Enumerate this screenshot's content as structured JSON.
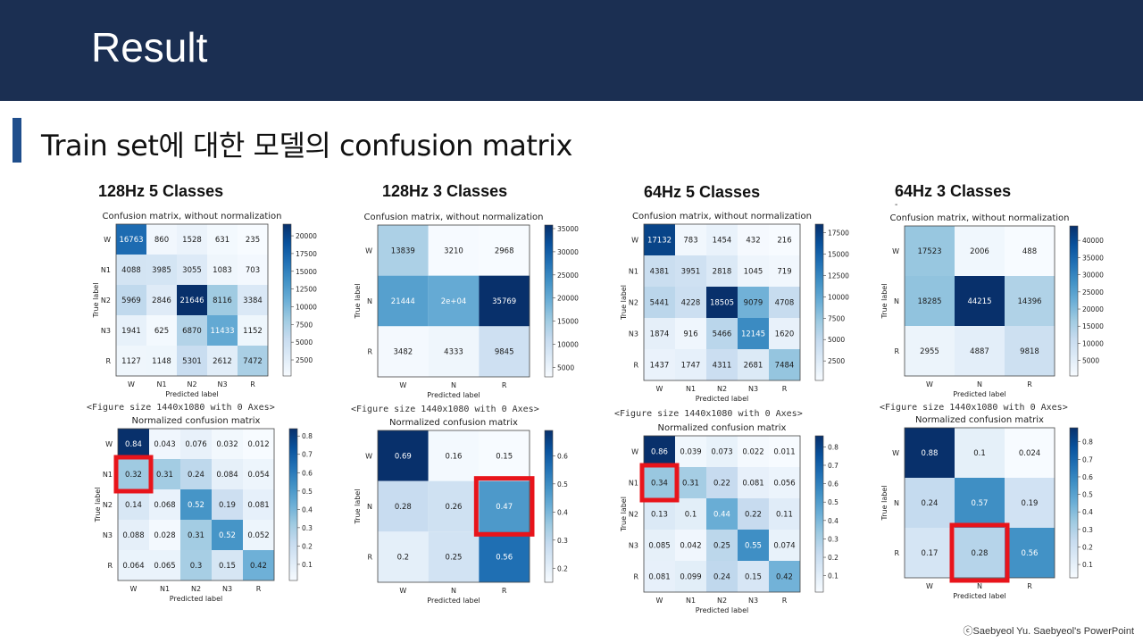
{
  "slide": {
    "title": "Result",
    "subtitle": "Train set에 대한 모델의 confusion matrix",
    "footer": "ⓒSaebyeol Yu. Saebyeol's PowerPoint",
    "stray_mark": "-"
  },
  "columns": [
    {
      "label": "128Hz 5 Classes"
    },
    {
      "label": "128Hz 3 Classes"
    },
    {
      "label": "64Hz 5 Classes"
    },
    {
      "label": "64Hz 3 Classes"
    }
  ],
  "chart_data": [
    {
      "type": "heatmap",
      "title": "Confusion matrix, without normalization",
      "xlabel": "Predicted label",
      "ylabel": "True label",
      "x_categories": [
        "W",
        "N1",
        "N2",
        "N3",
        "R"
      ],
      "y_categories": [
        "W",
        "N1",
        "N2",
        "N3",
        "R"
      ],
      "cells": [
        [
          "16763",
          "860",
          "1528",
          "631",
          "235"
        ],
        [
          "4088",
          "3985",
          "3055",
          "1083",
          "703"
        ],
        [
          "5969",
          "2846",
          "21646",
          "8116",
          "3384"
        ],
        [
          "1941",
          "625",
          "6870",
          "11433",
          "1152"
        ],
        [
          "1127",
          "1148",
          "5301",
          "2612",
          "7472"
        ]
      ],
      "vmin": 235,
      "vmax": 21646,
      "colorbar_ticks": [
        "2500",
        "5000",
        "7500",
        "10000",
        "12500",
        "15000",
        "17500",
        "20000"
      ],
      "colormap": "Blues",
      "caption": "<Figure size 1440x1080 with 0 Axes>"
    },
    {
      "type": "heatmap",
      "title": "Normalized confusion matrix",
      "xlabel": "Predicted label",
      "ylabel": "True label",
      "x_categories": [
        "W",
        "N1",
        "N2",
        "N3",
        "R"
      ],
      "y_categories": [
        "W",
        "N1",
        "N2",
        "N3",
        "R"
      ],
      "cells": [
        [
          "0.84",
          "0.043",
          "0.076",
          "0.032",
          "0.012"
        ],
        [
          "0.32",
          "0.31",
          "0.24",
          "0.084",
          "0.054"
        ],
        [
          "0.14",
          "0.068",
          "0.52",
          "0.19",
          "0.081"
        ],
        [
          "0.088",
          "0.028",
          "0.31",
          "0.52",
          "0.052"
        ],
        [
          "0.064",
          "0.065",
          "0.3",
          "0.15",
          "0.42"
        ]
      ],
      "vmin": 0.012,
      "vmax": 0.84,
      "colorbar_ticks": [
        "0.1",
        "0.2",
        "0.3",
        "0.4",
        "0.5",
        "0.6",
        "0.7",
        "0.8"
      ],
      "colormap": "Blues",
      "highlight": {
        "row": 1,
        "col": 0,
        "color": "#e8141b"
      }
    },
    {
      "type": "heatmap",
      "title": "Confusion matrix, without normalization",
      "xlabel": "Predicted label",
      "ylabel": "True label",
      "x_categories": [
        "W",
        "N",
        "R"
      ],
      "y_categories": [
        "W",
        "N",
        "R"
      ],
      "cells": [
        [
          "13839",
          "3210",
          "2968"
        ],
        [
          "21444",
          "2e+04",
          "35769"
        ],
        [
          "3482",
          "4333",
          "9845"
        ]
      ],
      "vmin": 2968,
      "vmax": 35769,
      "colorbar_ticks": [
        "5000",
        "10000",
        "15000",
        "20000",
        "25000",
        "30000",
        "35000"
      ],
      "colormap": "Blues",
      "caption": "<Figure size 1440x1080 with 0 Axes>"
    },
    {
      "type": "heatmap",
      "title": "Normalized confusion matrix",
      "xlabel": "Predicted label",
      "ylabel": "True label",
      "x_categories": [
        "W",
        "N",
        "R"
      ],
      "y_categories": [
        "W",
        "N",
        "R"
      ],
      "cells": [
        [
          "0.69",
          "0.16",
          "0.15"
        ],
        [
          "0.28",
          "0.26",
          "0.47"
        ],
        [
          "0.2",
          "0.25",
          "0.56"
        ]
      ],
      "vmin": 0.15,
      "vmax": 0.69,
      "colorbar_ticks": [
        "0.2",
        "0.3",
        "0.4",
        "0.5",
        "0.6"
      ],
      "colormap": "Blues",
      "highlight": {
        "row": 1,
        "col": 2,
        "color": "#e8141b"
      }
    },
    {
      "type": "heatmap",
      "title": "Confusion matrix, without normalization",
      "xlabel": "Predicted label",
      "ylabel": "True label",
      "x_categories": [
        "W",
        "N1",
        "N2",
        "N3",
        "R"
      ],
      "y_categories": [
        "W",
        "N1",
        "N2",
        "N3",
        "R"
      ],
      "cells": [
        [
          "17132",
          "783",
          "1454",
          "432",
          "216"
        ],
        [
          "4381",
          "3951",
          "2818",
          "1045",
          "719"
        ],
        [
          "5441",
          "4228",
          "18505",
          "9079",
          "4708"
        ],
        [
          "1874",
          "916",
          "5466",
          "12145",
          "1620"
        ],
        [
          "1437",
          "1747",
          "4311",
          "2681",
          "7484"
        ]
      ],
      "vmin": 216,
      "vmax": 18505,
      "colorbar_ticks": [
        "2500",
        "5000",
        "7500",
        "10000",
        "12500",
        "15000",
        "17500"
      ],
      "colormap": "Blues",
      "caption": "<Figure size 1440x1080 with 0 Axes>"
    },
    {
      "type": "heatmap",
      "title": "Normalized confusion matrix",
      "xlabel": "Predicted label",
      "ylabel": "True label",
      "x_categories": [
        "W",
        "N1",
        "N2",
        "N3",
        "R"
      ],
      "y_categories": [
        "W",
        "N1",
        "N2",
        "N3",
        "R"
      ],
      "cells": [
        [
          "0.86",
          "0.039",
          "0.073",
          "0.022",
          "0.011"
        ],
        [
          "0.34",
          "0.31",
          "0.22",
          "0.081",
          "0.056"
        ],
        [
          "0.13",
          "0.1",
          "0.44",
          "0.22",
          "0.11"
        ],
        [
          "0.085",
          "0.042",
          "0.25",
          "0.55",
          "0.074"
        ],
        [
          "0.081",
          "0.099",
          "0.24",
          "0.15",
          "0.42"
        ]
      ],
      "vmin": 0.011,
      "vmax": 0.86,
      "colorbar_ticks": [
        "0.1",
        "0.2",
        "0.3",
        "0.4",
        "0.5",
        "0.6",
        "0.7",
        "0.8"
      ],
      "colormap": "Blues",
      "highlight": {
        "row": 1,
        "col": 0,
        "color": "#e8141b"
      }
    },
    {
      "type": "heatmap",
      "title": "Confusion matrix, without normalization",
      "xlabel": "Predicted label",
      "ylabel": "True label",
      "x_categories": [
        "W",
        "N",
        "R"
      ],
      "y_categories": [
        "W",
        "N",
        "R"
      ],
      "cells": [
        [
          "17523",
          "2006",
          "488"
        ],
        [
          "18285",
          "44215",
          "14396"
        ],
        [
          "2955",
          "4887",
          "9818"
        ]
      ],
      "vmin": 488,
      "vmax": 44215,
      "colorbar_ticks": [
        "5000",
        "10000",
        "15000",
        "20000",
        "25000",
        "30000",
        "35000",
        "40000"
      ],
      "colormap": "Blues",
      "caption": "<Figure size 1440x1080 with 0 Axes>"
    },
    {
      "type": "heatmap",
      "title": "Normalized confusion matrix",
      "xlabel": "Predicted label",
      "ylabel": "True label",
      "x_categories": [
        "W",
        "N",
        "R"
      ],
      "y_categories": [
        "W",
        "N",
        "R"
      ],
      "cells": [
        [
          "0.88",
          "0.1",
          "0.024"
        ],
        [
          "0.24",
          "0.57",
          "0.19"
        ],
        [
          "0.17",
          "0.28",
          "0.56"
        ]
      ],
      "vmin": 0.024,
      "vmax": 0.88,
      "colorbar_ticks": [
        "0.1",
        "0.2",
        "0.3",
        "0.4",
        "0.5",
        "0.6",
        "0.7",
        "0.8"
      ],
      "colormap": "Blues",
      "highlight": {
        "row": 2,
        "col": 1,
        "color": "#e8141b"
      }
    }
  ]
}
